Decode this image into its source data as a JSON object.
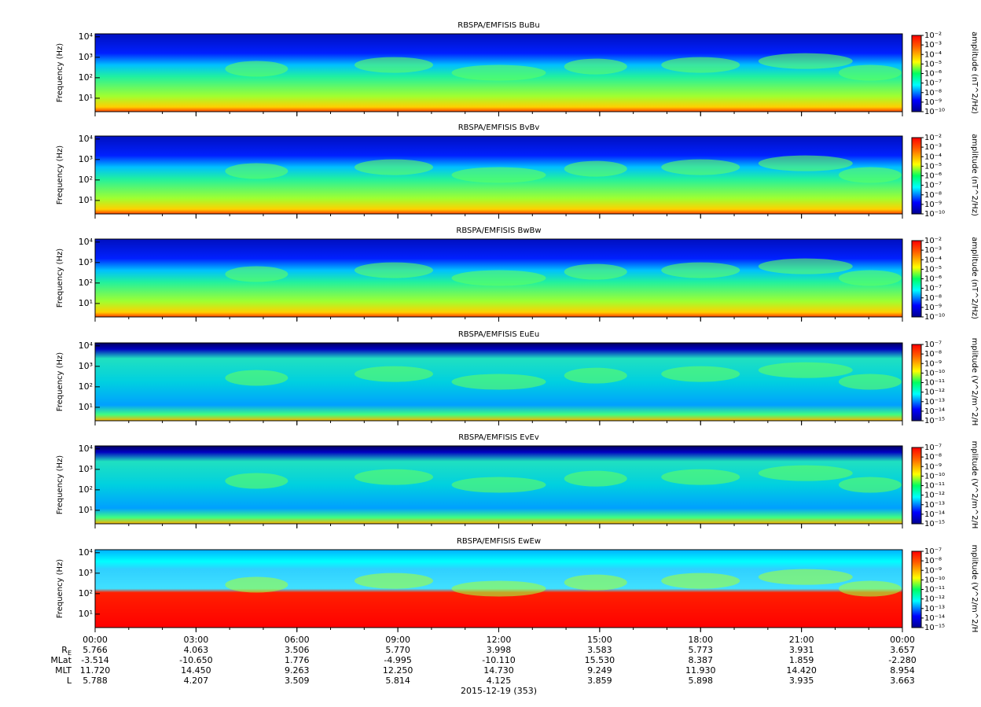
{
  "chart_data": [
    {
      "type": "spectrogram",
      "title": "RBSPA/EMFISIS  BuBu",
      "ylabel": "Frequency (Hz)",
      "log": true,
      "ylim": [
        2.2,
        14000
      ],
      "yticks": [
        {
          "value": 10,
          "label": "10¹"
        },
        {
          "value": 100,
          "label": "10²"
        },
        {
          "value": 1000,
          "label": "10³"
        },
        {
          "value": 10000,
          "label": "10⁴"
        }
      ],
      "colorbar": {
        "label": "amplitude (nT^2/Hz)",
        "lim": [
          1e-10,
          0.01
        ],
        "ticks": [
          {
            "value": 0.01,
            "label": "10⁻²"
          },
          {
            "value": 0.001,
            "label": "10⁻³"
          },
          {
            "value": 0.0001,
            "label": "10⁻⁴"
          },
          {
            "value": 1e-05,
            "label": "10⁻⁵"
          },
          {
            "value": 1e-06,
            "label": "10⁻⁶"
          },
          {
            "value": 1e-07,
            "label": "10⁻⁷"
          },
          {
            "value": 1e-08,
            "label": "10⁻⁸"
          },
          {
            "value": 1e-09,
            "label": "10⁻⁹"
          },
          {
            "value": 1e-10,
            "label": "10⁻¹⁰"
          }
        ]
      }
    },
    {
      "type": "spectrogram",
      "title": "RBSPA/EMFISIS  BvBv",
      "ylabel": "Frequency (Hz)",
      "log": true,
      "ylim": [
        2.2,
        14000
      ],
      "yticks": [
        {
          "value": 10,
          "label": "10¹"
        },
        {
          "value": 100,
          "label": "10²"
        },
        {
          "value": 1000,
          "label": "10³"
        },
        {
          "value": 10000,
          "label": "10⁴"
        }
      ],
      "colorbar": {
        "label": "amplitude (nT^2/Hz)",
        "lim": [
          1e-10,
          0.01
        ],
        "ticks": [
          {
            "value": 0.01,
            "label": "10⁻²"
          },
          {
            "value": 0.001,
            "label": "10⁻³"
          },
          {
            "value": 0.0001,
            "label": "10⁻⁴"
          },
          {
            "value": 1e-05,
            "label": "10⁻⁵"
          },
          {
            "value": 1e-06,
            "label": "10⁻⁶"
          },
          {
            "value": 1e-07,
            "label": "10⁻⁷"
          },
          {
            "value": 1e-08,
            "label": "10⁻⁸"
          },
          {
            "value": 1e-09,
            "label": "10⁻⁹"
          },
          {
            "value": 1e-10,
            "label": "10⁻¹⁰"
          }
        ]
      }
    },
    {
      "type": "spectrogram",
      "title": "RBSPA/EMFISIS  BwBw",
      "ylabel": "Frequency (Hz)",
      "log": true,
      "ylim": [
        2.2,
        14000
      ],
      "yticks": [
        {
          "value": 10,
          "label": "10¹"
        },
        {
          "value": 100,
          "label": "10²"
        },
        {
          "value": 1000,
          "label": "10³"
        },
        {
          "value": 10000,
          "label": "10⁴"
        }
      ],
      "colorbar": {
        "label": "amplitude (nT^2/Hz)",
        "lim": [
          1e-10,
          0.01
        ],
        "ticks": [
          {
            "value": 0.01,
            "label": "10⁻²"
          },
          {
            "value": 0.001,
            "label": "10⁻³"
          },
          {
            "value": 0.0001,
            "label": "10⁻⁴"
          },
          {
            "value": 1e-05,
            "label": "10⁻⁵"
          },
          {
            "value": 1e-06,
            "label": "10⁻⁶"
          },
          {
            "value": 1e-07,
            "label": "10⁻⁷"
          },
          {
            "value": 1e-08,
            "label": "10⁻⁸"
          },
          {
            "value": 1e-09,
            "label": "10⁻⁹"
          },
          {
            "value": 1e-10,
            "label": "10⁻¹⁰"
          }
        ]
      }
    },
    {
      "type": "spectrogram",
      "title": "RBSPA/EMFISIS  EuEu",
      "ylabel": "Frequency (Hz)",
      "log": true,
      "ylim": [
        2.2,
        14000
      ],
      "yticks": [
        {
          "value": 10,
          "label": "10¹"
        },
        {
          "value": 100,
          "label": "10²"
        },
        {
          "value": 1000,
          "label": "10³"
        },
        {
          "value": 10000,
          "label": "10⁴"
        }
      ],
      "colorbar": {
        "label": "mplitude (V^2/m^2/H",
        "lim": [
          1e-15,
          1e-07
        ],
        "ticks": [
          {
            "value": 1e-07,
            "label": "10⁻⁷"
          },
          {
            "value": 1e-08,
            "label": "10⁻⁸"
          },
          {
            "value": 1e-09,
            "label": "10⁻⁹"
          },
          {
            "value": 1e-10,
            "label": "10⁻¹⁰"
          },
          {
            "value": 1e-11,
            "label": "10⁻¹¹"
          },
          {
            "value": 1e-12,
            "label": "10⁻¹²"
          },
          {
            "value": 1e-13,
            "label": "10⁻¹³"
          },
          {
            "value": 1e-14,
            "label": "10⁻¹⁴"
          },
          {
            "value": 1e-15,
            "label": "10⁻¹⁵"
          }
        ]
      }
    },
    {
      "type": "spectrogram",
      "title": "RBSPA/EMFISIS  EvEv",
      "ylabel": "Frequency (Hz)",
      "log": true,
      "ylim": [
        2.2,
        14000
      ],
      "yticks": [
        {
          "value": 10,
          "label": "10¹"
        },
        {
          "value": 100,
          "label": "10²"
        },
        {
          "value": 1000,
          "label": "10³"
        },
        {
          "value": 10000,
          "label": "10⁴"
        }
      ],
      "colorbar": {
        "label": "mplitude (V^2/m^2/H",
        "lim": [
          1e-15,
          1e-07
        ],
        "ticks": [
          {
            "value": 1e-07,
            "label": "10⁻⁷"
          },
          {
            "value": 1e-08,
            "label": "10⁻⁸"
          },
          {
            "value": 1e-09,
            "label": "10⁻⁹"
          },
          {
            "value": 1e-10,
            "label": "10⁻¹⁰"
          },
          {
            "value": 1e-11,
            "label": "10⁻¹¹"
          },
          {
            "value": 1e-12,
            "label": "10⁻¹²"
          },
          {
            "value": 1e-13,
            "label": "10⁻¹³"
          },
          {
            "value": 1e-14,
            "label": "10⁻¹⁴"
          },
          {
            "value": 1e-15,
            "label": "10⁻¹⁵"
          }
        ]
      }
    },
    {
      "type": "spectrogram",
      "title": "RBSPA/EMFISIS  EwEw",
      "ylabel": "Frequency (Hz)",
      "log": true,
      "ylim": [
        2.2,
        14000
      ],
      "yticks": [
        {
          "value": 10,
          "label": "10¹"
        },
        {
          "value": 100,
          "label": "10²"
        },
        {
          "value": 1000,
          "label": "10³"
        },
        {
          "value": 10000,
          "label": "10⁴"
        }
      ],
      "colorbar": {
        "label": "mplitude (V^2/m^2/H",
        "lim": [
          1e-15,
          1e-07
        ],
        "ticks": [
          {
            "value": 1e-07,
            "label": "10⁻⁷"
          },
          {
            "value": 1e-08,
            "label": "10⁻⁸"
          },
          {
            "value": 1e-09,
            "label": "10⁻⁹"
          },
          {
            "value": 1e-10,
            "label": "10⁻¹⁰"
          },
          {
            "value": 1e-11,
            "label": "10⁻¹¹"
          },
          {
            "value": 1e-12,
            "label": "10⁻¹²"
          },
          {
            "value": 1e-13,
            "label": "10⁻¹³"
          },
          {
            "value": 1e-14,
            "label": "10⁻¹⁴"
          },
          {
            "value": 1e-15,
            "label": "10⁻¹⁵"
          }
        ]
      }
    }
  ],
  "time_axis": {
    "xlim": [
      0,
      24
    ],
    "xticks": [
      {
        "value": 0,
        "label": "00:00"
      },
      {
        "value": 3,
        "label": "03:00"
      },
      {
        "value": 6,
        "label": "06:00"
      },
      {
        "value": 9,
        "label": "09:00"
      },
      {
        "value": 12,
        "label": "12:00"
      },
      {
        "value": 15,
        "label": "15:00"
      },
      {
        "value": 18,
        "label": "18:00"
      },
      {
        "value": 21,
        "label": "21:00"
      },
      {
        "value": 24,
        "label": "00:00"
      }
    ],
    "ephemeris": [
      {
        "label": "R",
        "subscript": "E",
        "values": [
          "5.766",
          "4.063",
          "3.506",
          "5.770",
          "3.998",
          "3.583",
          "5.773",
          "3.931",
          "3.657"
        ]
      },
      {
        "label": "MLat",
        "values": [
          "-3.514",
          "-10.650",
          "1.776",
          "-4.995",
          "-10.110",
          "15.530",
          "8.387",
          "1.859",
          "-2.280"
        ]
      },
      {
        "label": "MLT",
        "values": [
          "11.720",
          "14.450",
          "9.263",
          "12.250",
          "14.730",
          "9.249",
          "11.930",
          "14.420",
          "8.954"
        ]
      },
      {
        "label": "L",
        "values": [
          "5.788",
          "4.207",
          "3.509",
          "5.814",
          "4.125",
          "3.859",
          "5.898",
          "3.935",
          "3.663"
        ]
      }
    ],
    "xlabel": "2015-12-19 (353)"
  }
}
